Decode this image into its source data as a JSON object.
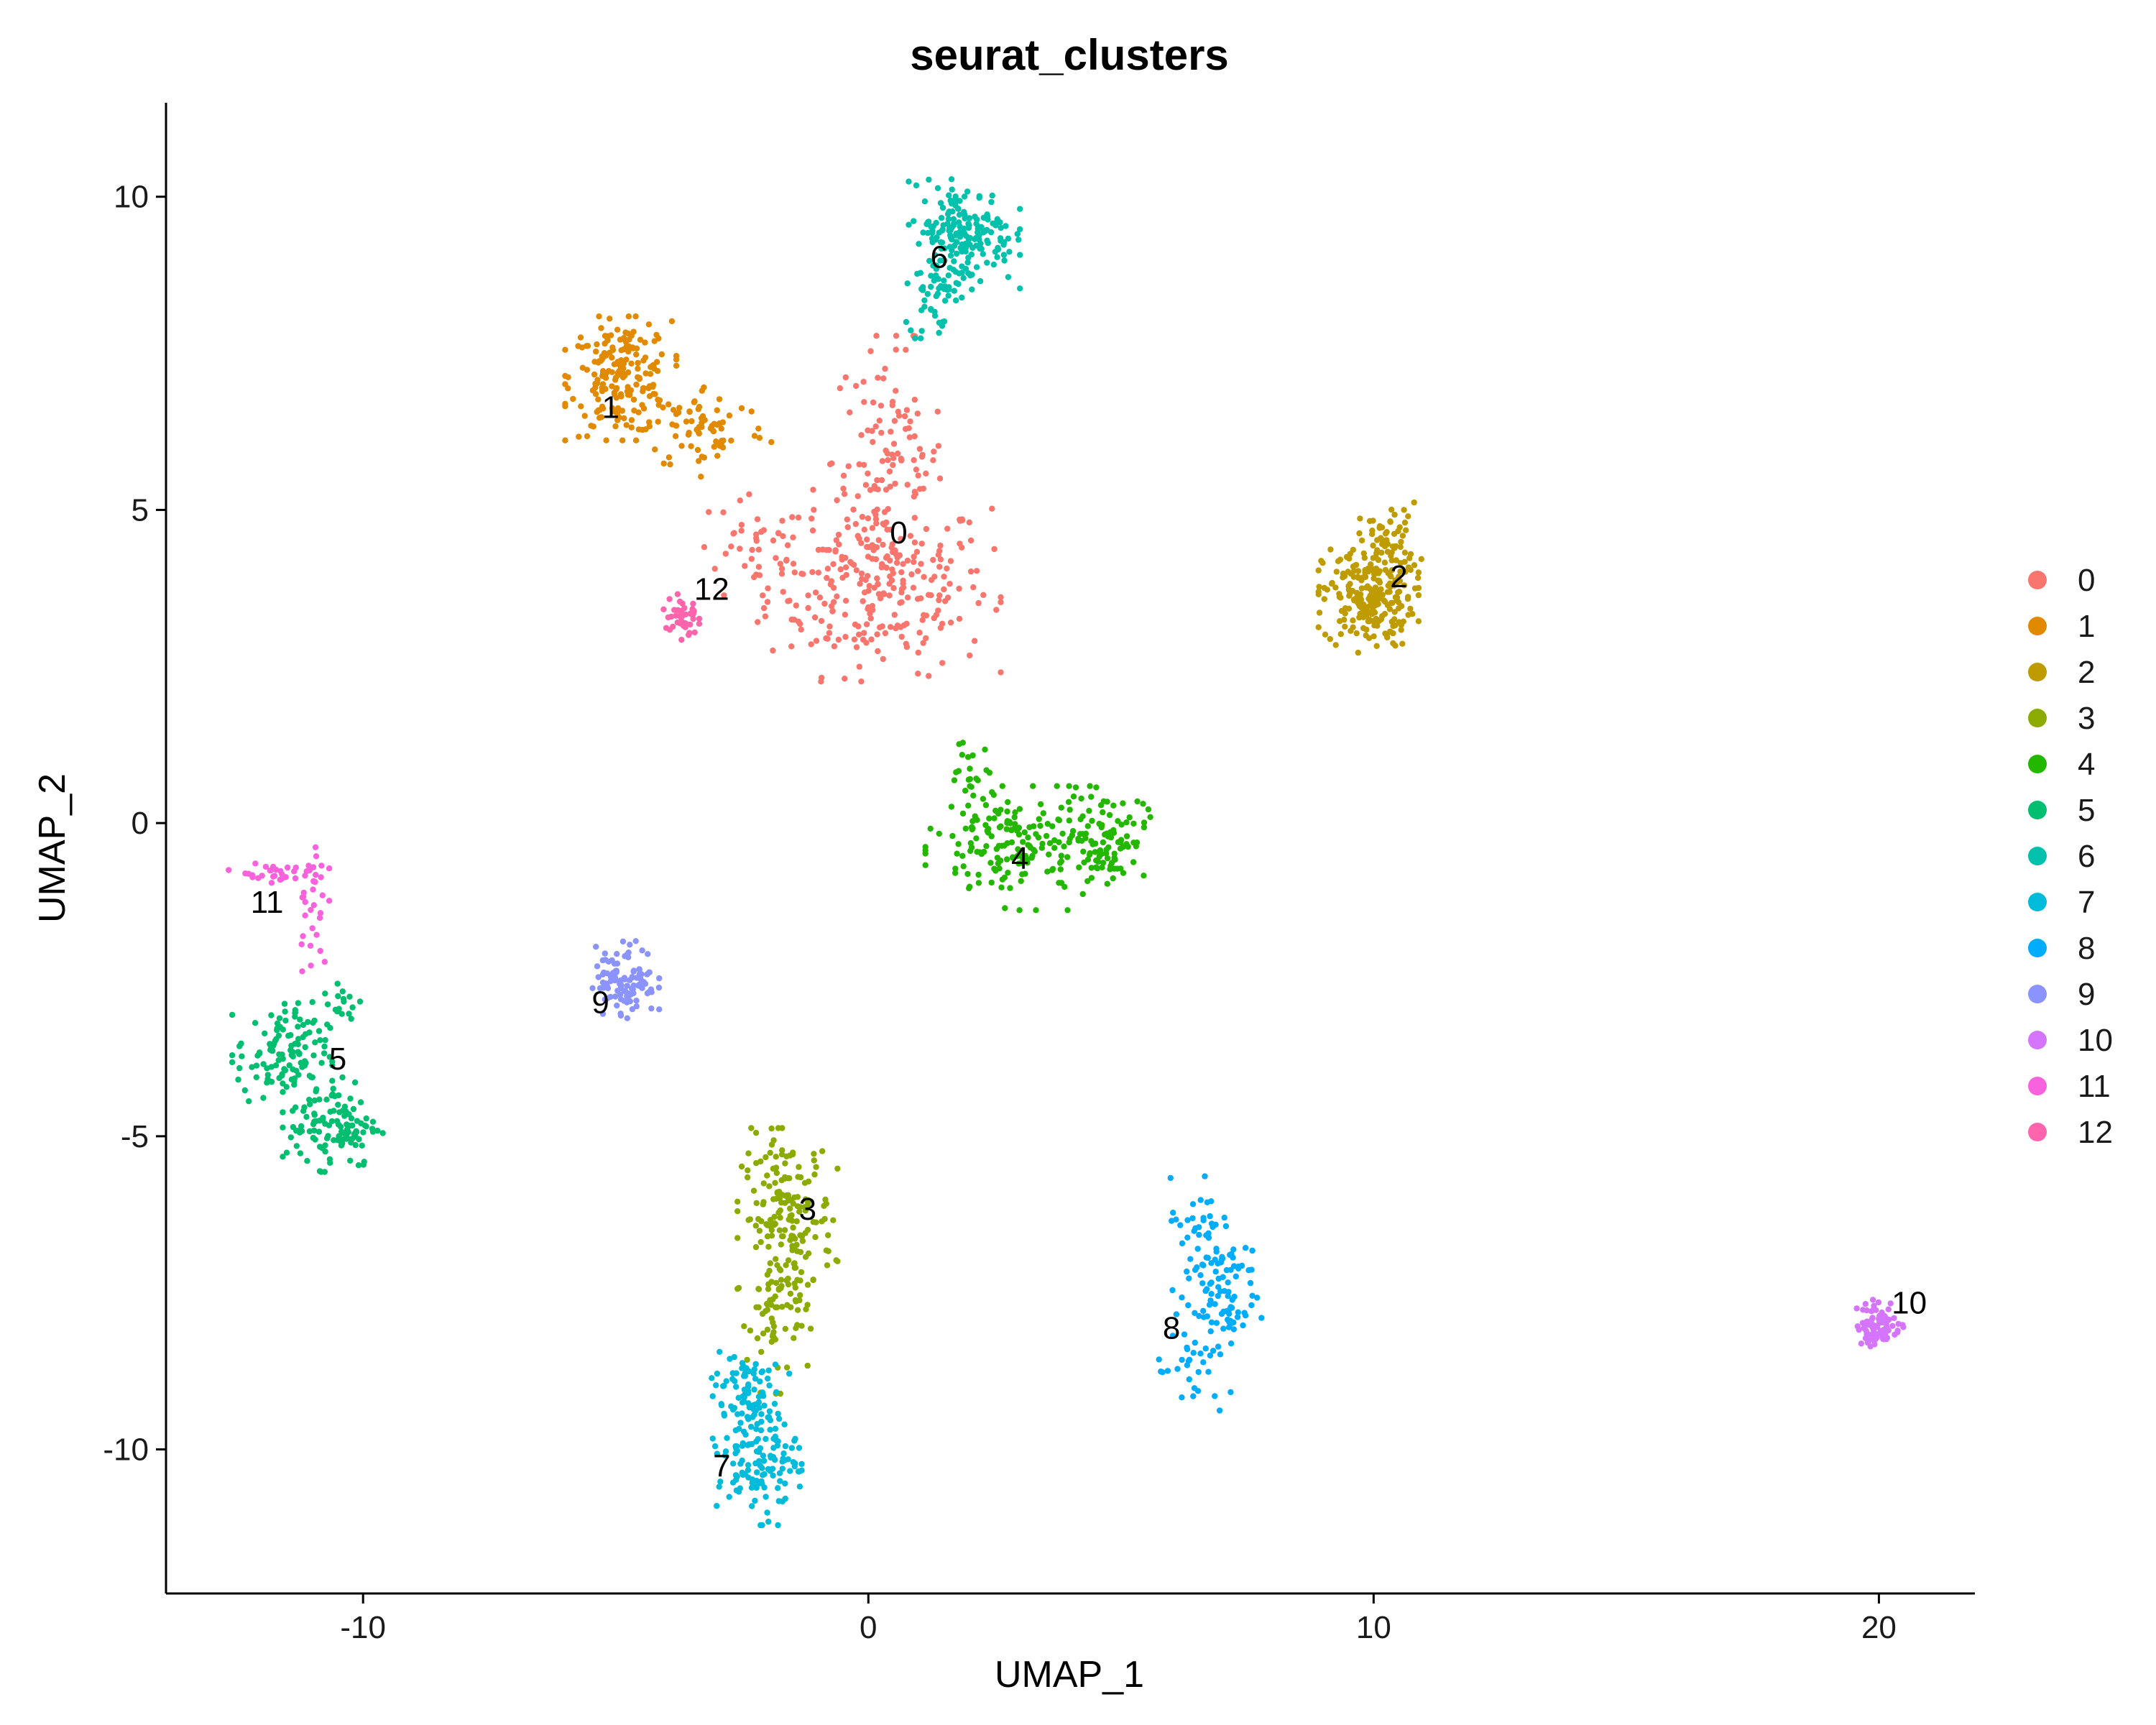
{
  "chart_data": {
    "type": "scatter",
    "title": "seurat_clusters",
    "xlabel": "UMAP_1",
    "ylabel": "UMAP_2",
    "xlim": [
      -13.9,
      21.9
    ],
    "ylim": [
      -12.3,
      11.5
    ],
    "xticks": [
      -10,
      0,
      10,
      20
    ],
    "yticks": [
      -10,
      -5,
      0,
      5,
      10
    ],
    "xtick_labels": [
      "-10",
      "0",
      "10",
      "20"
    ],
    "ytick_labels": [
      "-10",
      "-5",
      "0",
      "5",
      "10"
    ],
    "grid": false,
    "legend": "right",
    "point_size": "small",
    "series": [
      {
        "name": "0",
        "color": "#F8766D",
        "label_pos": [
          0.6,
          4.6
        ],
        "clusters": [
          {
            "cx": 0.2,
            "cy": 3.8,
            "sx": 1.1,
            "sy": 0.7,
            "n": 260
          },
          {
            "cx": 0.4,
            "cy": 5.8,
            "sx": 0.55,
            "sy": 0.9,
            "n": 110
          },
          {
            "cx": -2.2,
            "cy": 4.3,
            "sx": 0.7,
            "sy": 0.45,
            "n": 40
          }
        ]
      },
      {
        "name": "1",
        "color": "#E18A00",
        "label_pos": [
          -5.1,
          6.6
        ],
        "clusters": [
          {
            "cx": -4.9,
            "cy": 7.1,
            "sx": 0.5,
            "sy": 0.45,
            "n": 200
          },
          {
            "cx": -3.2,
            "cy": 6.3,
            "sx": 0.6,
            "sy": 0.35,
            "n": 70
          }
        ]
      },
      {
        "name": "2",
        "color": "#BE9C00",
        "label_pos": [
          10.5,
          3.9
        ],
        "clusters": [
          {
            "cx": 9.9,
            "cy": 3.6,
            "sx": 0.45,
            "sy": 0.4,
            "n": 220
          },
          {
            "cx": 10.3,
            "cy": 4.5,
            "sx": 0.3,
            "sy": 0.3,
            "n": 60
          }
        ]
      },
      {
        "name": "3",
        "color": "#8CAB00",
        "label_pos": [
          -1.2,
          -6.2
        ],
        "clusters": [
          {
            "cx": -1.6,
            "cy": -6.3,
            "sx": 0.45,
            "sy": 0.65,
            "n": 180
          },
          {
            "cx": -1.8,
            "cy": -7.9,
            "sx": 0.3,
            "sy": 0.55,
            "n": 60
          }
        ]
      },
      {
        "name": "4",
        "color": "#24B700",
        "label_pos": [
          3.0,
          -0.6
        ],
        "clusters": [
          {
            "cx": 3.0,
            "cy": -0.4,
            "sx": 0.85,
            "sy": 0.45,
            "n": 170
          },
          {
            "cx": 4.7,
            "cy": -0.2,
            "sx": 0.4,
            "sy": 0.35,
            "n": 90
          },
          {
            "cx": 2.0,
            "cy": 0.6,
            "sx": 0.35,
            "sy": 0.45,
            "n": 30
          }
        ]
      },
      {
        "name": "5",
        "color": "#00BE70",
        "label_pos": [
          -10.5,
          -3.8
        ],
        "clusters": [
          {
            "cx": -11.6,
            "cy": -3.7,
            "sx": 0.45,
            "sy": 0.4,
            "n": 120
          },
          {
            "cx": -10.6,
            "cy": -4.8,
            "sx": 0.45,
            "sy": 0.35,
            "n": 120
          },
          {
            "cx": -10.4,
            "cy": -2.9,
            "sx": 0.2,
            "sy": 0.2,
            "n": 15
          }
        ]
      },
      {
        "name": "6",
        "color": "#00C1AB",
        "label_pos": [
          1.4,
          9.0
        ],
        "clusters": [
          {
            "cx": 1.9,
            "cy": 9.4,
            "sx": 0.5,
            "sy": 0.4,
            "n": 200
          },
          {
            "cx": 1.3,
            "cy": 8.4,
            "sx": 0.25,
            "sy": 0.3,
            "n": 40
          }
        ]
      },
      {
        "name": "7",
        "color": "#00BBDA",
        "label_pos": [
          -2.9,
          -10.3
        ],
        "clusters": [
          {
            "cx": -2.2,
            "cy": -10.0,
            "sx": 0.4,
            "sy": 0.55,
            "n": 170
          },
          {
            "cx": -2.5,
            "cy": -8.9,
            "sx": 0.3,
            "sy": 0.35,
            "n": 40
          }
        ]
      },
      {
        "name": "8",
        "color": "#00ACFC",
        "label_pos": [
          6.0,
          -8.1
        ],
        "clusters": [
          {
            "cx": 6.9,
            "cy": -7.4,
            "sx": 0.4,
            "sy": 0.5,
            "n": 100
          },
          {
            "cx": 6.4,
            "cy": -8.8,
            "sx": 0.35,
            "sy": 0.35,
            "n": 30
          },
          {
            "cx": 6.5,
            "cy": -6.3,
            "sx": 0.25,
            "sy": 0.3,
            "n": 25
          }
        ]
      },
      {
        "name": "9",
        "color": "#8B93FF",
        "label_pos": [
          -5.3,
          -2.9
        ],
        "clusters": [
          {
            "cx": -4.8,
            "cy": -2.5,
            "sx": 0.3,
            "sy": 0.28,
            "n": 110
          }
        ]
      },
      {
        "name": "10",
        "color": "#D575FE",
        "label_pos": [
          20.6,
          -7.7
        ],
        "clusters": [
          {
            "cx": 20.0,
            "cy": -8.0,
            "sx": 0.22,
            "sy": 0.18,
            "n": 80
          }
        ]
      },
      {
        "name": "11",
        "color": "#F962DD",
        "label_pos": [
          -11.9,
          -1.3
        ],
        "clusters": [
          {
            "cx": -12.0,
            "cy": -0.8,
            "sx": 0.3,
            "sy": 0.07,
            "n": 25
          },
          {
            "cx": -11.0,
            "cy": -1.2,
            "sx": 0.15,
            "sy": 0.55,
            "n": 35
          }
        ]
      },
      {
        "name": "12",
        "color": "#FF65AC",
        "label_pos": [
          -3.1,
          3.7
        ],
        "clusters": [
          {
            "cx": -3.7,
            "cy": 3.3,
            "sx": 0.16,
            "sy": 0.2,
            "n": 45
          }
        ]
      }
    ]
  }
}
